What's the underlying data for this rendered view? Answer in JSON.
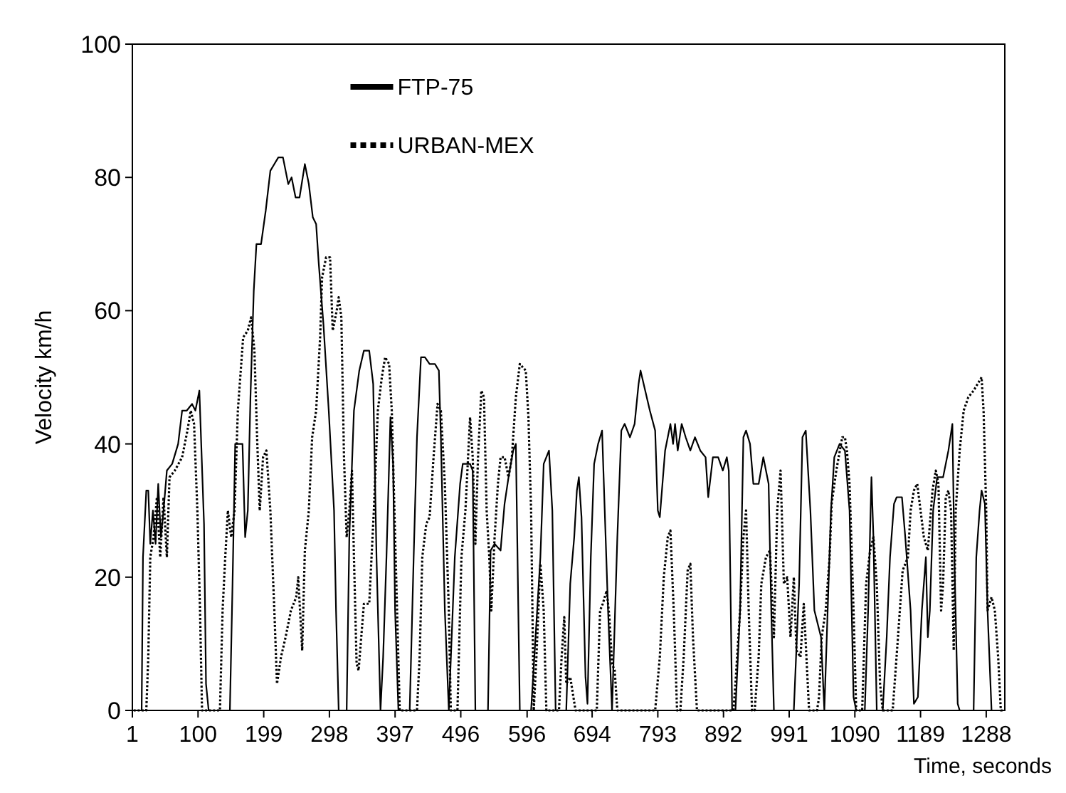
{
  "chart_data": {
    "type": "line",
    "xlabel": "Time, seconds",
    "ylabel": "Velocity km/h",
    "xlim": [
      1,
      1316
    ],
    "xticks": [
      1,
      100,
      199,
      298,
      397,
      496,
      596,
      694,
      793,
      892,
      991,
      1090,
      1189,
      1288
    ],
    "ylim": [
      0,
      100
    ],
    "yticks": [
      0,
      20,
      40,
      60,
      80,
      100
    ],
    "grid": false,
    "legend": "top",
    "series": [
      {
        "name": "FTP-75",
        "color": "#000000",
        "line_style": "solid",
        "x": [
          3,
          15,
          17,
          22,
          25,
          28,
          32,
          36,
          40,
          44,
          48,
          53,
          61,
          64,
          70,
          76,
          83,
          91,
          96,
          102,
          109,
          112,
          116,
          148,
          152,
          156,
          164,
          167,
          171,
          175,
          179,
          184,
          188,
          195,
          202,
          209,
          215,
          221,
          228,
          236,
          241,
          247,
          253,
          261,
          267,
          273,
          278,
          282,
          289,
          297,
          305,
          308,
          312,
          324,
          328,
          335,
          343,
          350,
          358,
          364,
          369,
          375,
          379,
          384,
          390,
          394,
          397,
          402,
          419,
          425,
          430,
          436,
          442,
          449,
          457,
          463,
          466,
          472,
          478,
          487,
          495,
          499,
          510,
          514,
          518,
          537,
          541,
          547,
          556,
          562,
          568,
          575,
          579,
          585,
          602,
          616,
          621,
          629,
          634,
          639,
          655,
          661,
          667,
          671,
          674,
          678,
          684,
          687,
          692,
          697,
          703,
          709,
          713,
          718,
          724,
          732,
          738,
          743,
          751,
          758,
          764,
          767,
          774,
          781,
          789,
          793,
          796,
          800,
          804,
          812,
          816,
          819,
          823,
          829,
          835,
          842,
          849,
          857,
          865,
          869,
          876,
          884,
          891,
          897,
          900,
          903,
          905,
          910,
          917,
          922,
          926,
          932,
          937,
          945,
          952,
          960,
          964,
          968,
          972,
          998,
          1006,
          1011,
          1016,
          1023,
          1029,
          1034,
          1039,
          1044,
          1049,
          1054,
          1059,
          1067,
          1075,
          1082,
          1088,
          1092,
          1105,
          1110,
          1115,
          1118,
          1123,
          1132,
          1138,
          1143,
          1149,
          1153,
          1161,
          1166,
          1174,
          1179,
          1185,
          1191,
          1197,
          1200,
          1203,
          1208,
          1214,
          1223,
          1231,
          1237,
          1240,
          1245,
          1248,
          1269,
          1273,
          1278,
          1281,
          1286,
          1290,
          1296,
          1307,
          1313
        ],
        "values": [
          0,
          0,
          23,
          33,
          33,
          25,
          30,
          25,
          34,
          26,
          30,
          36,
          37,
          38,
          40,
          45,
          45,
          46,
          45,
          48,
          28,
          4,
          0,
          0,
          19,
          40,
          40,
          40,
          26,
          30,
          47,
          63,
          70,
          70,
          75,
          81,
          82,
          83,
          83,
          79,
          80,
          77,
          77,
          82,
          79,
          74,
          73,
          67,
          58,
          45,
          30,
          15,
          0,
          0,
          26,
          45,
          51,
          54,
          54,
          49,
          23,
          0,
          8,
          23,
          44,
          37,
          15,
          0,
          0,
          23,
          41,
          53,
          53,
          52,
          52,
          51,
          41,
          15,
          0,
          23,
          34,
          37,
          37,
          36,
          0,
          0,
          24,
          25,
          24,
          31,
          35,
          39,
          40,
          0,
          0,
          23,
          37,
          39,
          30,
          0,
          0,
          19,
          26,
          33,
          35,
          29,
          5,
          1,
          23,
          37,
          40,
          42,
          30,
          15,
          0,
          26,
          42,
          43,
          41,
          43,
          49,
          51,
          48,
          45,
          42,
          30,
          29,
          34,
          39,
          43,
          40,
          43,
          39,
          43,
          41,
          39,
          41,
          39,
          38,
          32,
          38,
          38,
          36,
          38,
          36,
          15,
          0,
          0,
          15,
          41,
          42,
          40,
          34,
          34,
          38,
          34,
          15,
          0,
          0,
          0,
          19,
          41,
          42,
          30,
          15,
          13,
          11,
          0,
          15,
          30,
          38,
          40,
          39,
          30,
          2,
          0,
          0,
          15,
          35,
          26,
          0,
          0,
          11,
          23,
          31,
          32,
          32,
          26,
          15,
          1,
          2,
          15,
          23,
          11,
          15,
          30,
          35,
          35,
          39,
          43,
          23,
          1,
          0,
          0,
          23,
          30,
          33,
          31,
          15,
          0,
          0,
          0
        ]
      },
      {
        "name": "URBAN-MEX",
        "color": "#000000",
        "line_style": "dotted",
        "x": [
          3,
          22,
          25,
          28,
          33,
          38,
          43,
          48,
          53,
          57,
          65,
          76,
          84,
          89,
          94,
          99,
          103,
          106,
          133,
          137,
          141,
          145,
          150,
          155,
          160,
          168,
          175,
          180,
          185,
          189,
          193,
          198,
          203,
          209,
          215,
          219,
          225,
          232,
          240,
          248,
          251,
          257,
          261,
          267,
          272,
          278,
          284,
          287,
          293,
          299,
          303,
          309,
          312,
          316,
          320,
          324,
          328,
          332,
          335,
          339,
          342,
          350,
          358,
          365,
          371,
          377,
          382,
          388,
          392,
          396,
          400,
          404,
          430,
          434,
          438,
          444,
          449,
          455,
          461,
          466,
          472,
          478,
          481,
          491,
          497,
          503,
          507,
          510,
          514,
          518,
          522,
          527,
          531,
          535,
          539,
          542,
          547,
          552,
          556,
          562,
          568,
          573,
          579,
          585,
          594,
          598,
          602,
          606,
          610,
          616,
          621,
          625,
          644,
          648,
          652,
          655,
          661,
          669,
          701,
          706,
          710,
          716,
          720,
          724,
          728,
          732,
          789,
          796,
          802,
          808,
          812,
          817,
          822,
          827,
          832,
          838,
          842,
          846,
          852,
          907,
          910,
          917,
          922,
          926,
          930,
          935,
          939,
          945,
          949,
          956,
          962,
          968,
          973,
          978,
          983,
          988,
          993,
          998,
          1002,
          1008,
          1013,
          1017,
          1021,
          1033,
          1036,
          1040,
          1046,
          1052,
          1055,
          1062,
          1071,
          1075,
          1078,
          1082,
          1088,
          1092,
          1101,
          1107,
          1113,
          1118,
          1123,
          1128,
          1132,
          1147,
          1155,
          1162,
          1170,
          1174,
          1179,
          1184,
          1189,
          1194,
          1200,
          1207,
          1212,
          1216,
          1220,
          1223,
          1227,
          1231,
          1235,
          1239,
          1242,
          1248,
          1254,
          1261,
          1269,
          1275,
          1281,
          1284,
          1288,
          1290,
          1296,
          1301,
          1306,
          1310,
          1313
        ],
        "values": [
          0,
          0,
          8,
          23,
          26,
          32,
          23,
          32,
          23,
          35,
          36,
          38,
          42,
          45,
          43,
          30,
          15,
          0,
          0,
          15,
          23,
          30,
          26,
          30,
          45,
          56,
          57,
          59,
          54,
          41,
          30,
          38,
          39,
          30,
          15,
          4,
          8,
          11,
          15,
          17,
          20,
          9,
          24,
          30,
          41,
          45,
          56,
          65,
          68,
          68,
          57,
          60,
          62,
          59,
          38,
          26,
          30,
          36,
          23,
          7,
          6,
          16,
          16,
          30,
          45,
          50,
          53,
          52,
          45,
          30,
          15,
          0,
          0,
          8,
          23,
          28,
          29,
          38,
          46,
          45,
          34,
          15,
          0,
          0,
          23,
          30,
          38,
          44,
          38,
          25,
          38,
          48,
          47,
          30,
          23,
          15,
          26,
          34,
          38,
          38,
          35,
          38,
          47,
          52,
          51,
          44,
          30,
          0,
          8,
          22,
          15,
          0,
          0,
          8,
          14,
          4,
          5,
          0,
          0,
          15,
          16,
          18,
          14,
          7,
          6,
          0,
          0,
          8,
          20,
          26,
          27,
          15,
          0,
          0,
          8,
          21,
          22,
          11,
          0,
          0,
          4,
          15,
          26,
          30,
          15,
          0,
          0,
          8,
          19,
          23,
          24,
          11,
          30,
          36,
          19,
          20,
          11,
          20,
          9,
          8,
          16,
          8,
          0,
          0,
          2,
          11,
          15,
          23,
          31,
          36,
          41,
          41,
          39,
          34,
          15,
          0,
          0,
          19,
          24,
          26,
          19,
          4,
          0,
          0,
          11,
          21,
          23,
          30,
          33,
          34,
          30,
          26,
          24,
          33,
          36,
          34,
          15,
          19,
          32,
          33,
          30,
          9,
          30,
          39,
          45,
          47,
          48,
          49,
          50,
          45,
          30,
          15,
          17,
          15,
          8,
          0,
          0
        ]
      }
    ]
  }
}
